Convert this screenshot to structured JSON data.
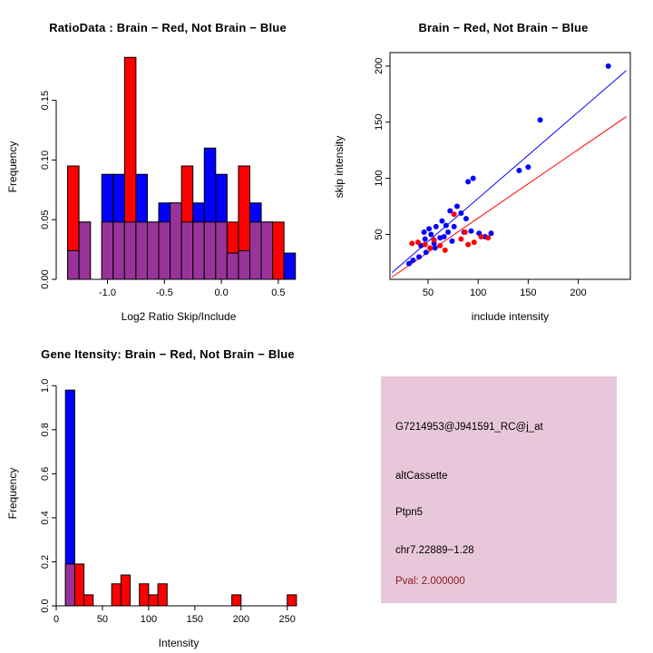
{
  "figure": {
    "background": "#ffffff",
    "colors": {
      "red": "#ff0000",
      "blue": "#0000ff",
      "overlap": "#993399",
      "axis": "#000000"
    }
  },
  "chart_data": [
    {
      "id": "ratio_histogram",
      "type": "bar",
      "title": "RatioData : Brain − Red, Not Brain − Blue",
      "xlabel": "Log2 Ratio Skip/Include",
      "ylabel": "Frequency",
      "legend": {
        "Brain": "red",
        "Not Brain": "blue"
      },
      "xlim": [
        -1.45,
        0.7
      ],
      "ylim": [
        0,
        0.19
      ],
      "bin_width": 0.1,
      "xticks": [
        {
          "v": -1.0,
          "label": "-1.0"
        },
        {
          "v": -0.5,
          "label": "-0.5"
        },
        {
          "v": 0.0,
          "label": "0.0"
        },
        {
          "v": 0.5,
          "label": "0.5"
        }
      ],
      "yticks": [
        {
          "v": 0.0,
          "label": "0.00"
        },
        {
          "v": 0.05,
          "label": "0.05"
        },
        {
          "v": 0.1,
          "label": "0.10"
        },
        {
          "v": 0.15,
          "label": "0.15"
        }
      ],
      "bins": [
        {
          "x": -1.35,
          "red": 0.095,
          "blue": 0.024
        },
        {
          "x": -1.25,
          "red": 0.048,
          "blue": 0.048
        },
        {
          "x": -1.15,
          "red": 0,
          "blue": 0
        },
        {
          "x": -1.05,
          "red": 0.048,
          "blue": 0.088
        },
        {
          "x": -0.95,
          "red": 0.048,
          "blue": 0.088
        },
        {
          "x": -0.85,
          "red": 0.186,
          "blue": 0.048
        },
        {
          "x": -0.75,
          "red": 0.048,
          "blue": 0.088
        },
        {
          "x": -0.65,
          "red": 0.048,
          "blue": 0.048
        },
        {
          "x": -0.55,
          "red": 0.048,
          "blue": 0.064
        },
        {
          "x": -0.45,
          "red": 0.064,
          "blue": 0.064
        },
        {
          "x": -0.35,
          "red": 0.095,
          "blue": 0.048
        },
        {
          "x": -0.25,
          "red": 0.048,
          "blue": 0.064
        },
        {
          "x": -0.15,
          "red": 0.048,
          "blue": 0.11
        },
        {
          "x": -0.05,
          "red": 0.048,
          "blue": 0.088
        },
        {
          "x": 0.05,
          "red": 0.048,
          "blue": 0.022
        },
        {
          "x": 0.15,
          "red": 0.095,
          "blue": 0.024
        },
        {
          "x": 0.25,
          "red": 0.048,
          "blue": 0.064
        },
        {
          "x": 0.35,
          "red": 0.048,
          "blue": 0.048
        },
        {
          "x": 0.45,
          "red": 0.048,
          "blue": 0
        },
        {
          "x": 0.55,
          "red": 0,
          "blue": 0.022
        }
      ]
    },
    {
      "id": "intensity_scatter",
      "type": "scatter",
      "title": "Brain − Red, Not Brain − Blue",
      "xlabel": "include intensity",
      "ylabel": "skip intensity",
      "xlim": [
        12,
        252
      ],
      "ylim": [
        10,
        212
      ],
      "xticks": [
        {
          "v": 50,
          "label": "50"
        },
        {
          "v": 100,
          "label": "100"
        },
        {
          "v": 150,
          "label": "150"
        },
        {
          "v": 200,
          "label": "200"
        }
      ],
      "yticks": [
        {
          "v": 50,
          "label": "50"
        },
        {
          "v": 100,
          "label": "100"
        },
        {
          "v": 150,
          "label": "150"
        },
        {
          "v": 200,
          "label": "200"
        }
      ],
      "series": [
        {
          "name": "Not Brain",
          "color": "blue",
          "points": [
            [
              230,
              200
            ],
            [
              162,
              152
            ],
            [
              150,
              110
            ],
            [
              141,
              107
            ],
            [
              95,
              100
            ],
            [
              90,
              97
            ],
            [
              79,
              75
            ],
            [
              72,
              71
            ],
            [
              83,
              69
            ],
            [
              64,
              62
            ],
            [
              58,
              57
            ],
            [
              53,
              50
            ],
            [
              47,
              46
            ],
            [
              43,
              40
            ],
            [
              56,
              42
            ],
            [
              62,
              47
            ],
            [
              70,
              52
            ],
            [
              76,
              57
            ],
            [
              86,
              52
            ],
            [
              93,
              53
            ],
            [
              101,
              51
            ],
            [
              107,
              48
            ],
            [
              113,
              51
            ],
            [
              57,
              38
            ],
            [
              48,
              34
            ],
            [
              41,
              30
            ],
            [
              35,
              27
            ],
            [
              31,
              24
            ],
            [
              88,
              64
            ],
            [
              68,
              58
            ],
            [
              51,
              55
            ],
            [
              46,
              52
            ],
            [
              66,
              48
            ],
            [
              74,
              44
            ]
          ]
        },
        {
          "name": "Brain",
          "color": "red",
          "points": [
            [
              34,
              42
            ],
            [
              40,
              43
            ],
            [
              47,
              41
            ],
            [
              56,
              45
            ],
            [
              62,
              40
            ],
            [
              76,
              68
            ],
            [
              83,
              46
            ],
            [
              90,
              41
            ],
            [
              96,
              43
            ],
            [
              103,
              48
            ],
            [
              67,
              36
            ],
            [
              87,
              52
            ],
            [
              110,
              47
            ],
            [
              52,
              38
            ]
          ]
        }
      ],
      "fit_lines": [
        {
          "color": "blue",
          "x1": 14,
          "y1": 16,
          "x2": 248,
          "y2": 196
        },
        {
          "color": "red",
          "x1": 14,
          "y1": 12,
          "x2": 248,
          "y2": 155
        }
      ]
    },
    {
      "id": "gene_intensity_histogram",
      "type": "bar",
      "title": "Gene Itensity: Brain − Red, Not Brain − Blue",
      "xlabel": "Intensity",
      "ylabel": "Frequency",
      "legend": {
        "Brain": "red",
        "Not Brain": "blue"
      },
      "xlim": [
        0,
        265
      ],
      "ylim": [
        0,
        1.03
      ],
      "bin_width": 10,
      "xticks": [
        {
          "v": 0,
          "label": "0"
        },
        {
          "v": 50,
          "label": "50"
        },
        {
          "v": 100,
          "label": "100"
        },
        {
          "v": 150,
          "label": "150"
        },
        {
          "v": 200,
          "label": "200"
        },
        {
          "v": 250,
          "label": "250"
        }
      ],
      "yticks": [
        {
          "v": 0.0,
          "label": "0.0"
        },
        {
          "v": 0.2,
          "label": "0.2"
        },
        {
          "v": 0.4,
          "label": "0.4"
        },
        {
          "v": 0.6,
          "label": "0.6"
        },
        {
          "v": 0.8,
          "label": "0.8"
        },
        {
          "v": 1.0,
          "label": "1.0"
        }
      ],
      "bins": [
        {
          "x": 10,
          "red": 0.19,
          "blue": 0.98
        },
        {
          "x": 20,
          "red": 0.19,
          "blue": 0
        },
        {
          "x": 30,
          "red": 0.05,
          "blue": 0
        },
        {
          "x": 60,
          "red": 0.1,
          "blue": 0
        },
        {
          "x": 70,
          "red": 0.14,
          "blue": 0
        },
        {
          "x": 90,
          "red": 0.1,
          "blue": 0
        },
        {
          "x": 100,
          "red": 0.05,
          "blue": 0
        },
        {
          "x": 110,
          "red": 0.1,
          "blue": 0
        },
        {
          "x": 190,
          "red": 0.05,
          "blue": 0
        },
        {
          "x": 250,
          "red": 0.05,
          "blue": 0
        }
      ]
    }
  ],
  "info_box": {
    "background": "#e8c7da",
    "lines": [
      {
        "text": "G7214953@J941591_RC@j_at",
        "color": "#000000"
      },
      {
        "text": "altCassette",
        "color": "#000000"
      },
      {
        "text": "Ptpn5",
        "color": "#000000"
      },
      {
        "text": "chr7.22889−1.28",
        "color": "#000000"
      },
      {
        "text": "Pval: 2.000000",
        "color": "#8b1a1a"
      }
    ]
  }
}
